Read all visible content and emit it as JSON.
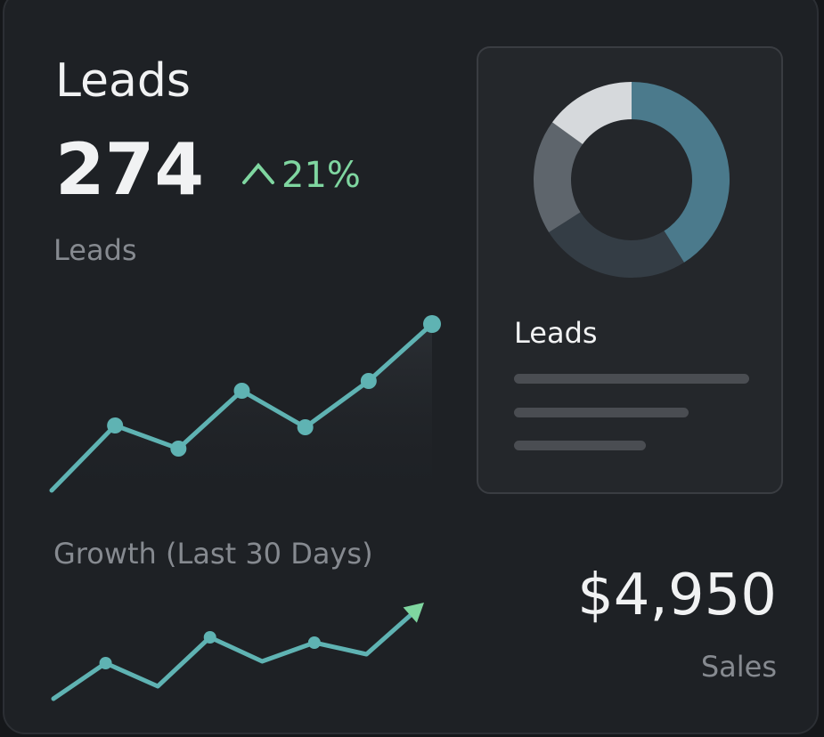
{
  "card": {
    "title": "Leads",
    "value": 274,
    "change": "21%",
    "value_label": "Leads"
  },
  "sparkline": {
    "color": "#5fb3b3",
    "values": [
      49,
      122,
      96,
      161,
      120,
      172,
      236
    ]
  },
  "growth": {
    "title": "Growth (Last 30 Days)",
    "color": "#5fb3b3",
    "arrow_color": "#7fd6a0",
    "values": [
      15,
      55,
      29,
      84,
      57,
      78,
      65,
      117
    ]
  },
  "donut": {
    "title": "Leads",
    "values": [
      41,
      25,
      19,
      15
    ],
    "colors": [
      "#4b7a8c",
      "#343d45",
      "#5e656c",
      "#d6d9dc"
    ]
  },
  "sales": {
    "value": "$4,950",
    "label": "Sales"
  }
}
